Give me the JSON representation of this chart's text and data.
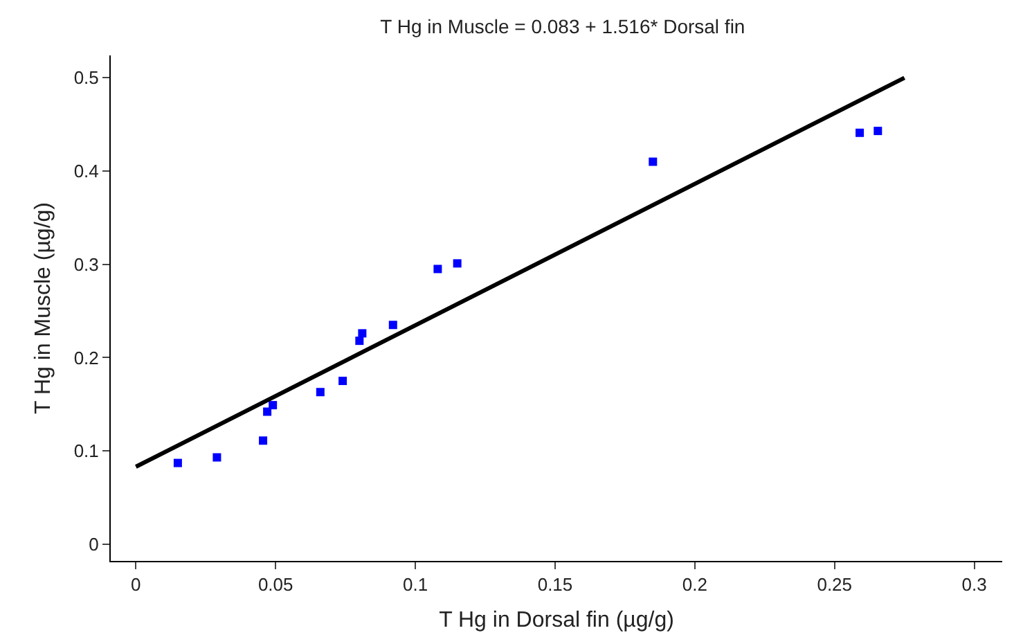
{
  "chart_data": {
    "type": "scatter",
    "title": "T Hg in Muscle = 0.083 + 1.516* Dorsal fin",
    "xlabel": "T Hg in Dorsal fin (µg/g)",
    "ylabel": "T Hg in Muscle (µg/g)",
    "xlim": [
      -0.009,
      0.31
    ],
    "ylim": [
      -0.018,
      0.524
    ],
    "xticks": [
      0,
      0.05,
      0.1,
      0.15,
      0.2,
      0.25,
      0.3
    ],
    "yticks": [
      0,
      0.1,
      0.2,
      0.3,
      0.4,
      0.5
    ],
    "grid": false,
    "series": [
      {
        "type": "scatter",
        "color": "#0000ff",
        "marker": "square",
        "x": [
          0.015,
          0.029,
          0.0455,
          0.047,
          0.049,
          0.066,
          0.074,
          0.08,
          0.081,
          0.092,
          0.108,
          0.115,
          0.185,
          0.259,
          0.2655
        ],
        "values": [
          0.087,
          0.093,
          0.111,
          0.142,
          0.149,
          0.163,
          0.175,
          0.218,
          0.226,
          0.235,
          0.295,
          0.301,
          0.41,
          0.441,
          0.443
        ]
      },
      {
        "type": "line",
        "color": "#000000",
        "marker": "none",
        "line_style": "solid",
        "x": [
          0,
          0.275
        ],
        "values": [
          0.083,
          0.5
        ]
      }
    ]
  }
}
